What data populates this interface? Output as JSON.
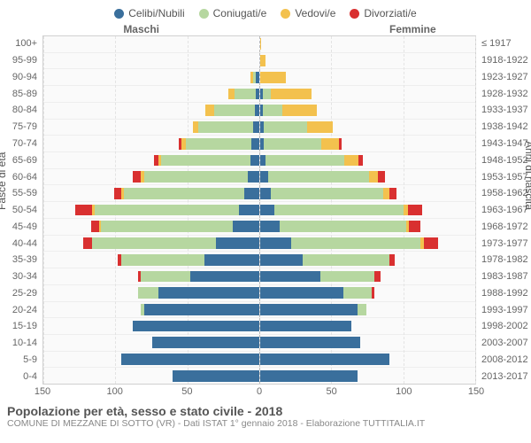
{
  "legend": [
    {
      "label": "Celibi/Nubili",
      "color": "#3a6f9c"
    },
    {
      "label": "Coniugati/e",
      "color": "#b6d7a0"
    },
    {
      "label": "Vedovi/e",
      "color": "#f3c14e"
    },
    {
      "label": "Divorziati/e",
      "color": "#d93030"
    }
  ],
  "labels": {
    "maschi": "Maschi",
    "femmine": "Femmine",
    "ylabel_left": "Fasce di età",
    "ylabel_right": "Anni di nascita"
  },
  "axis": {
    "max": 150,
    "ticks_left": [
      150,
      100,
      50,
      0
    ],
    "ticks_right": [
      0,
      50,
      100,
      150
    ],
    "grid": [
      50,
      100,
      150
    ]
  },
  "colors": {
    "celibi": "#3a6f9c",
    "coniugati": "#b6d7a0",
    "vedovi": "#f3c14e",
    "divorziati": "#d93030",
    "grid": "#e3e3e3",
    "border": "#d0d0d0",
    "bg": "#fafafa"
  },
  "rows": [
    {
      "age": "100+",
      "year": "≤ 1917",
      "m": {
        "c": 0,
        "k": 0,
        "v": 0,
        "d": 0
      },
      "f": {
        "c": 0,
        "k": 0,
        "v": 1,
        "d": 0
      }
    },
    {
      "age": "95-99",
      "year": "1918-1922",
      "m": {
        "c": 0,
        "k": 0,
        "v": 0,
        "d": 0
      },
      "f": {
        "c": 0,
        "k": 0,
        "v": 4,
        "d": 0
      }
    },
    {
      "age": "90-94",
      "year": "1923-1927",
      "m": {
        "c": 2,
        "k": 2,
        "v": 2,
        "d": 0
      },
      "f": {
        "c": 0,
        "k": 0,
        "v": 18,
        "d": 0
      }
    },
    {
      "age": "85-89",
      "year": "1928-1932",
      "m": {
        "c": 2,
        "k": 15,
        "v": 4,
        "d": 0
      },
      "f": {
        "c": 2,
        "k": 6,
        "v": 28,
        "d": 0
      }
    },
    {
      "age": "80-84",
      "year": "1933-1937",
      "m": {
        "c": 3,
        "k": 28,
        "v": 6,
        "d": 0
      },
      "f": {
        "c": 2,
        "k": 14,
        "v": 24,
        "d": 0
      }
    },
    {
      "age": "75-79",
      "year": "1938-1942",
      "m": {
        "c": 4,
        "k": 38,
        "v": 4,
        "d": 0
      },
      "f": {
        "c": 3,
        "k": 30,
        "v": 18,
        "d": 0
      }
    },
    {
      "age": "70-74",
      "year": "1943-1947",
      "m": {
        "c": 5,
        "k": 46,
        "v": 3,
        "d": 2
      },
      "f": {
        "c": 3,
        "k": 40,
        "v": 12,
        "d": 2
      }
    },
    {
      "age": "65-69",
      "year": "1948-1952",
      "m": {
        "c": 6,
        "k": 62,
        "v": 2,
        "d": 3
      },
      "f": {
        "c": 4,
        "k": 55,
        "v": 10,
        "d": 3
      }
    },
    {
      "age": "60-64",
      "year": "1953-1957",
      "m": {
        "c": 8,
        "k": 72,
        "v": 2,
        "d": 6
      },
      "f": {
        "c": 6,
        "k": 70,
        "v": 6,
        "d": 5
      }
    },
    {
      "age": "55-59",
      "year": "1958-1962",
      "m": {
        "c": 10,
        "k": 84,
        "v": 2,
        "d": 5
      },
      "f": {
        "c": 8,
        "k": 78,
        "v": 4,
        "d": 5
      }
    },
    {
      "age": "50-54",
      "year": "1963-1967",
      "m": {
        "c": 14,
        "k": 100,
        "v": 2,
        "d": 12
      },
      "f": {
        "c": 10,
        "k": 90,
        "v": 3,
        "d": 10
      }
    },
    {
      "age": "45-49",
      "year": "1968-1972",
      "m": {
        "c": 18,
        "k": 92,
        "v": 1,
        "d": 6
      },
      "f": {
        "c": 14,
        "k": 88,
        "v": 2,
        "d": 8
      }
    },
    {
      "age": "40-44",
      "year": "1973-1977",
      "m": {
        "c": 30,
        "k": 86,
        "v": 0,
        "d": 6
      },
      "f": {
        "c": 22,
        "k": 90,
        "v": 2,
        "d": 10
      }
    },
    {
      "age": "35-39",
      "year": "1978-1982",
      "m": {
        "c": 38,
        "k": 58,
        "v": 0,
        "d": 2
      },
      "f": {
        "c": 30,
        "k": 60,
        "v": 0,
        "d": 4
      }
    },
    {
      "age": "30-34",
      "year": "1983-1987",
      "m": {
        "c": 48,
        "k": 34,
        "v": 0,
        "d": 2
      },
      "f": {
        "c": 42,
        "k": 38,
        "v": 0,
        "d": 4
      }
    },
    {
      "age": "25-29",
      "year": "1988-1992",
      "m": {
        "c": 70,
        "k": 14,
        "v": 0,
        "d": 0
      },
      "f": {
        "c": 58,
        "k": 20,
        "v": 0,
        "d": 2
      }
    },
    {
      "age": "20-24",
      "year": "1993-1997",
      "m": {
        "c": 80,
        "k": 2,
        "v": 0,
        "d": 0
      },
      "f": {
        "c": 68,
        "k": 6,
        "v": 0,
        "d": 0
      }
    },
    {
      "age": "15-19",
      "year": "1998-2002",
      "m": {
        "c": 88,
        "k": 0,
        "v": 0,
        "d": 0
      },
      "f": {
        "c": 64,
        "k": 0,
        "v": 0,
        "d": 0
      }
    },
    {
      "age": "10-14",
      "year": "2003-2007",
      "m": {
        "c": 74,
        "k": 0,
        "v": 0,
        "d": 0
      },
      "f": {
        "c": 70,
        "k": 0,
        "v": 0,
        "d": 0
      }
    },
    {
      "age": "5-9",
      "year": "2008-2012",
      "m": {
        "c": 96,
        "k": 0,
        "v": 0,
        "d": 0
      },
      "f": {
        "c": 90,
        "k": 0,
        "v": 0,
        "d": 0
      }
    },
    {
      "age": "0-4",
      "year": "2013-2017",
      "m": {
        "c": 60,
        "k": 0,
        "v": 0,
        "d": 0
      },
      "f": {
        "c": 68,
        "k": 0,
        "v": 0,
        "d": 0
      }
    }
  ],
  "footer": {
    "title": "Popolazione per età, sesso e stato civile - 2018",
    "subtitle": "COMUNE DI MEZZANE DI SOTTO (VR) - Dati ISTAT 1° gennaio 2018 - Elaborazione TUTTITALIA.IT"
  }
}
